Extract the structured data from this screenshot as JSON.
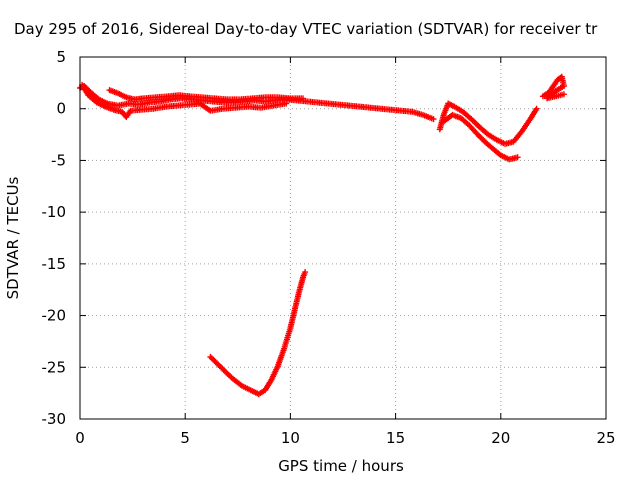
{
  "chart_data": {
    "type": "scatter",
    "title": "Day 295 of 2016, Sidereal Day-to-day VTEC variation (SDTVAR) for receiver tr",
    "xlabel": "GPS time / hours",
    "ylabel": "SDTVAR / TECUs",
    "xlim": [
      0,
      25
    ],
    "ylim": [
      -30,
      5
    ],
    "xticks": [
      0,
      5,
      10,
      15,
      20,
      25
    ],
    "yticks": [
      5,
      0,
      -5,
      -10,
      -15,
      -20,
      -25,
      -30
    ],
    "grid": true,
    "series": [
      {
        "name": "SDTVAR",
        "color": "#ff0000",
        "marker": "+",
        "segments": [
          [
            [
              0.0,
              2.0
            ],
            [
              0.2,
              2.2
            ],
            [
              0.5,
              1.6
            ],
            [
              0.9,
              0.9
            ],
            [
              1.3,
              0.5
            ],
            [
              1.8,
              0.3
            ],
            [
              2.3,
              0.5
            ],
            [
              2.8,
              0.4
            ],
            [
              3.3,
              0.6
            ],
            [
              3.8,
              0.7
            ],
            [
              4.3,
              0.9
            ],
            [
              4.8,
              1.0
            ],
            [
              5.3,
              0.9
            ],
            [
              5.8,
              0.8
            ],
            [
              6.3,
              0.7
            ],
            [
              6.8,
              0.6
            ],
            [
              7.3,
              0.6
            ],
            [
              7.8,
              0.7
            ],
            [
              8.3,
              0.8
            ],
            [
              8.8,
              0.7
            ],
            [
              9.3,
              0.8
            ],
            [
              9.8,
              0.9
            ],
            [
              10.3,
              0.8
            ],
            [
              10.8,
              0.7
            ],
            [
              11.3,
              0.6
            ],
            [
              11.8,
              0.5
            ],
            [
              12.3,
              0.4
            ],
            [
              12.8,
              0.3
            ],
            [
              13.3,
              0.2
            ],
            [
              13.8,
              0.1
            ],
            [
              14.3,
              0.0
            ],
            [
              14.8,
              -0.1
            ],
            [
              15.3,
              -0.2
            ],
            [
              15.8,
              -0.3
            ],
            [
              16.3,
              -0.6
            ],
            [
              16.8,
              -1.0
            ]
          ],
          [
            [
              0.1,
              2.3
            ],
            [
              0.4,
              1.3
            ],
            [
              0.8,
              0.6
            ],
            [
              1.2,
              0.2
            ],
            [
              1.6,
              -0.1
            ],
            [
              2.0,
              -0.3
            ],
            [
              2.2,
              -0.8
            ],
            [
              2.4,
              -0.2
            ],
            [
              2.9,
              -0.1
            ],
            [
              3.5,
              0.0
            ],
            [
              4.1,
              0.2
            ],
            [
              4.6,
              0.3
            ],
            [
              5.2,
              0.4
            ],
            [
              5.7,
              0.5
            ],
            [
              6.2,
              -0.2
            ],
            [
              6.8,
              0.0
            ],
            [
              7.4,
              0.1
            ],
            [
              8.0,
              0.2
            ],
            [
              8.6,
              0.1
            ],
            [
              9.2,
              0.3
            ],
            [
              9.8,
              0.5
            ]
          ],
          [
            [
              1.4,
              1.8
            ],
            [
              1.8,
              1.5
            ],
            [
              2.2,
              1.1
            ],
            [
              2.6,
              0.9
            ],
            [
              3.0,
              1.0
            ],
            [
              3.6,
              1.1
            ],
            [
              4.2,
              1.2
            ],
            [
              4.7,
              1.3
            ],
            [
              5.2,
              1.2
            ],
            [
              5.8,
              1.1
            ],
            [
              6.4,
              1.0
            ],
            [
              7.0,
              0.9
            ],
            [
              7.6,
              0.9
            ],
            [
              8.2,
              1.0
            ],
            [
              8.8,
              1.1
            ],
            [
              9.4,
              1.1
            ],
            [
              10.0,
              1.0
            ],
            [
              10.6,
              1.0
            ]
          ],
          [
            [
              6.2,
              -24.0
            ],
            [
              6.7,
              -25.0
            ],
            [
              7.2,
              -26.0
            ],
            [
              7.7,
              -26.8
            ],
            [
              8.2,
              -27.3
            ],
            [
              8.5,
              -27.6
            ],
            [
              8.8,
              -27.2
            ],
            [
              9.1,
              -26.2
            ],
            [
              9.4,
              -24.9
            ],
            [
              9.7,
              -23.2
            ],
            [
              10.0,
              -21.2
            ],
            [
              10.2,
              -19.5
            ],
            [
              10.4,
              -17.8
            ],
            [
              10.6,
              -16.3
            ],
            [
              10.7,
              -15.8
            ]
          ],
          [
            [
              17.1,
              -2.0
            ],
            [
              17.3,
              -0.5
            ],
            [
              17.5,
              0.5
            ],
            [
              17.8,
              0.2
            ],
            [
              18.2,
              -0.3
            ],
            [
              18.6,
              -1.0
            ],
            [
              19.0,
              -1.8
            ],
            [
              19.4,
              -2.5
            ],
            [
              19.8,
              -3.0
            ],
            [
              20.2,
              -3.4
            ],
            [
              20.6,
              -3.2
            ],
            [
              21.0,
              -2.2
            ],
            [
              21.4,
              -1.0
            ],
            [
              21.7,
              0.0
            ]
          ],
          [
            [
              17.3,
              -1.2
            ],
            [
              17.7,
              -0.6
            ],
            [
              18.1,
              -0.9
            ],
            [
              18.5,
              -1.6
            ],
            [
              18.9,
              -2.5
            ],
            [
              19.3,
              -3.3
            ],
            [
              19.7,
              -4.0
            ],
            [
              20.0,
              -4.5
            ],
            [
              20.4,
              -4.9
            ],
            [
              20.8,
              -4.7
            ]
          ],
          [
            [
              22.0,
              1.2
            ],
            [
              22.3,
              1.6
            ],
            [
              22.5,
              2.2
            ],
            [
              22.7,
              2.8
            ],
            [
              22.9,
              3.1
            ],
            [
              23.0,
              2.2
            ],
            [
              22.6,
              1.7
            ],
            [
              22.2,
              1.0
            ],
            [
              23.0,
              1.4
            ]
          ]
        ]
      }
    ]
  }
}
